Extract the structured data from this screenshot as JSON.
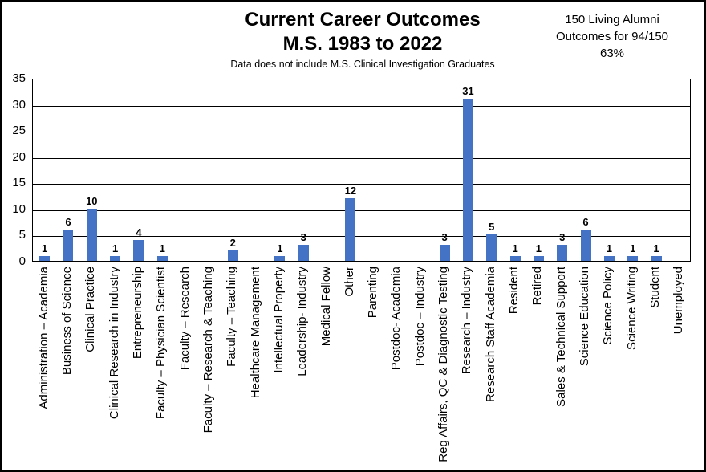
{
  "header": {
    "title_line1": "Current Career Outcomes",
    "title_line2": "M.S. 1983 to 2022",
    "subtitle": "Data does not include M.S. Clinical Investigation Graduates",
    "note_lines": [
      "150 Living Alumni",
      "Outcomes for 94/150",
      "63%"
    ]
  },
  "colors": {
    "bar": "#4472C4",
    "gridline": "#000000",
    "text": "#000000",
    "background": "#FFFFFF",
    "border": "#000000"
  },
  "chart_data": {
    "type": "bar",
    "title": "Current Career Outcomes M.S. 1983 to 2022",
    "subtitle": "Data does not include M.S. Clinical Investigation Graduates",
    "annotation": "150 Living Alumni Outcomes for 94/150 63%",
    "categories": [
      "Administration – Academia",
      "Business of Science",
      "Clinical Practice",
      "Clinical Research in Industry",
      "Entrepreneurship",
      "Faculty – Physician Scientist",
      "Faculty – Research",
      "Faculty – Research & Teaching",
      "Faculty – Teaching",
      "Healthcare Management",
      "Intellectual Property",
      "Leadership- Industry",
      "Medical Fellow",
      "Other",
      "Parenting",
      "Postdoc- Academia",
      "Postdoc – Industry",
      "Reg Affairs, QC & Diagnostic Testing",
      "Research – Industry",
      "Research Staff Academia",
      "Resident",
      "Retired",
      "Sales & Technical Support",
      "Science Education",
      "Science Policy",
      "Science Writing",
      "Student",
      "Unemployed"
    ],
    "values": [
      1,
      6,
      10,
      1,
      4,
      1,
      0,
      0,
      2,
      0,
      1,
      3,
      0,
      12,
      0,
      0,
      0,
      3,
      31,
      5,
      1,
      1,
      3,
      6,
      1,
      1,
      1,
      0
    ],
    "xlabel": "",
    "ylabel": "",
    "ylim": [
      0,
      35
    ],
    "yticks": [
      0,
      5,
      10,
      15,
      20,
      25,
      30,
      35
    ],
    "grid": true,
    "legend": false,
    "show_data_labels": true,
    "zero_bars_unlabeled": true,
    "bar_color": "#4472C4"
  }
}
